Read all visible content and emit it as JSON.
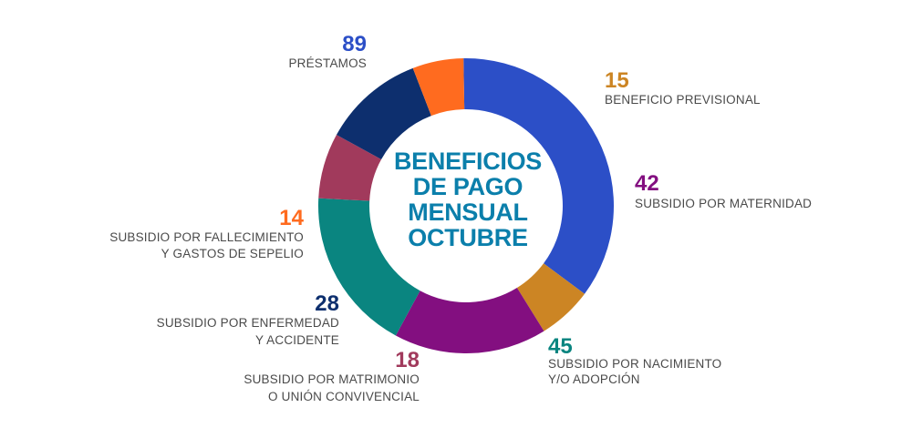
{
  "chart_data": {
    "type": "pie",
    "variant": "donut",
    "title_lines": [
      "BENEFICIOS",
      "DE PAGO",
      "MENSUAL",
      "OCTUBRE"
    ],
    "title_color": "#0b7fab",
    "slices": [
      {
        "value": 89,
        "value_label": "89",
        "label_lines": [
          "PRÉSTAMOS"
        ],
        "color": "#2c4fc7"
      },
      {
        "value": 15,
        "value_label": "15",
        "label_lines": [
          "BENEFICIO PREVISIONAL"
        ],
        "color": "#cc8524"
      },
      {
        "value": 42,
        "value_label": "42",
        "label_lines": [
          "SUBSIDIO POR MATERNIDAD"
        ],
        "color": "#830f80"
      },
      {
        "value": 45,
        "value_label": "45",
        "label_lines": [
          "SUBSIDIO POR NACIMIENTO",
          "Y/O ADOPCIÓN"
        ],
        "color": "#0a8580"
      },
      {
        "value": 18,
        "value_label": "18",
        "label_lines": [
          "SUBSIDIO POR MATRIMONIO",
          "O UNIÓN CONVIVENCIAL"
        ],
        "color": "#a13a5c"
      },
      {
        "value": 28,
        "value_label": "28",
        "label_lines": [
          "SUBSIDIO POR ENFERMEDAD",
          "Y ACCIDENTE"
        ],
        "color": "#0d2f6e"
      },
      {
        "value": 14,
        "value_label": "14",
        "label_lines": [
          "SUBSIDIO POR FALLECIMIENTO",
          "Y GASTOS DE SEPELIO"
        ],
        "color": "#ff6b1f"
      }
    ]
  }
}
